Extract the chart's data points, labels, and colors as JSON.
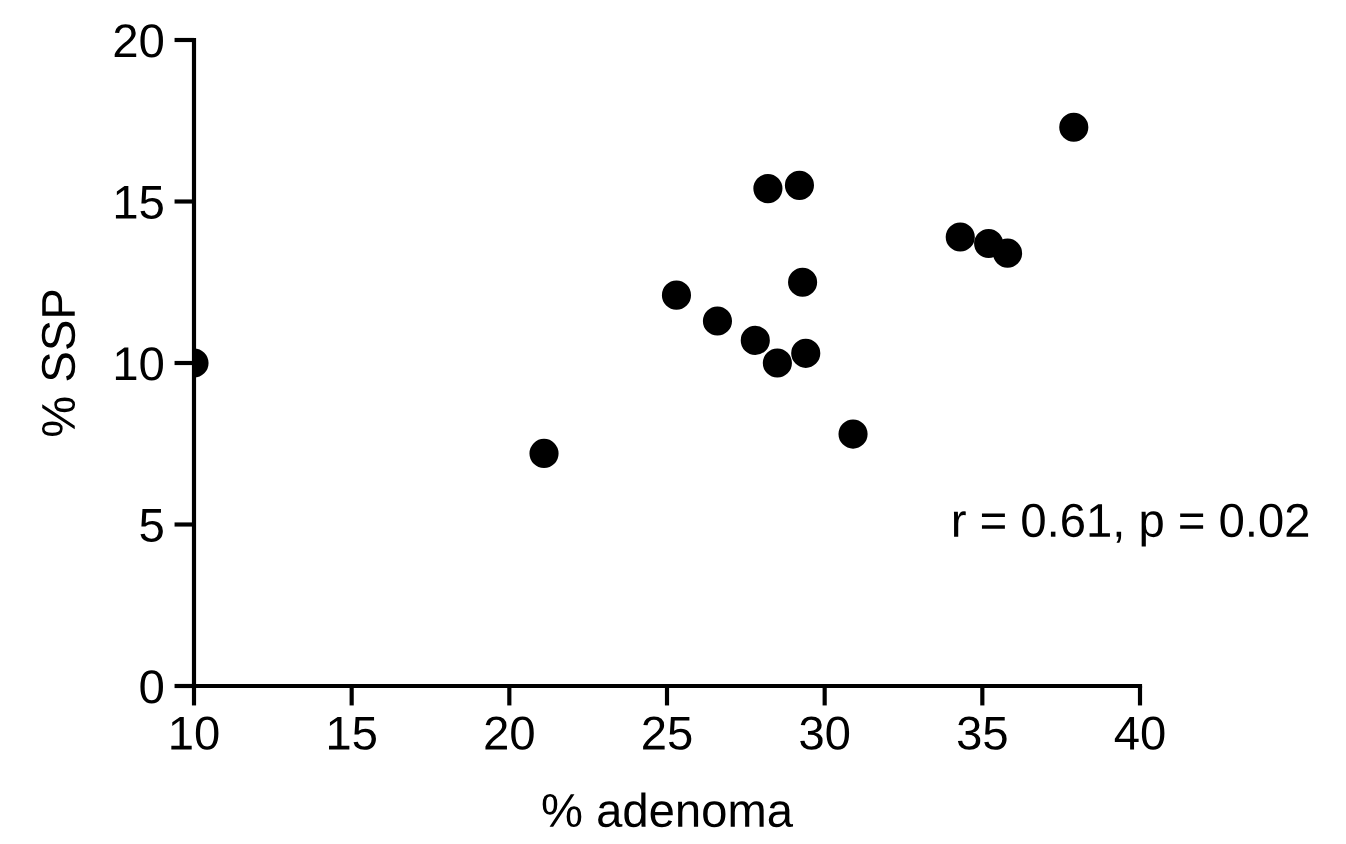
{
  "chart_data": {
    "type": "scatter",
    "xlabel": "% adenoma",
    "ylabel": "% SSP",
    "x": [
      10,
      21.1,
      25.3,
      26.6,
      27.8,
      28.2,
      28.5,
      29.2,
      29.3,
      29.4,
      30.9,
      34.3,
      35.2,
      35.8,
      37.9
    ],
    "series": [
      {
        "color": "#000000",
        "values": [
          10,
          7.2,
          12.1,
          11.3,
          10.7,
          15.4,
          10.0,
          15.5,
          12.5,
          10.3,
          7.8,
          13.9,
          13.7,
          13.4,
          17.3
        ]
      }
    ],
    "xlim": [
      10,
      40
    ],
    "ylim": [
      0,
      20
    ],
    "xticks": [
      10,
      15,
      20,
      25,
      30,
      35,
      40
    ],
    "yticks": [
      0,
      5,
      10,
      15,
      20
    ],
    "marker": "circle",
    "grid": false,
    "annotations": [
      "r = 0.61, p = 0.02"
    ]
  }
}
